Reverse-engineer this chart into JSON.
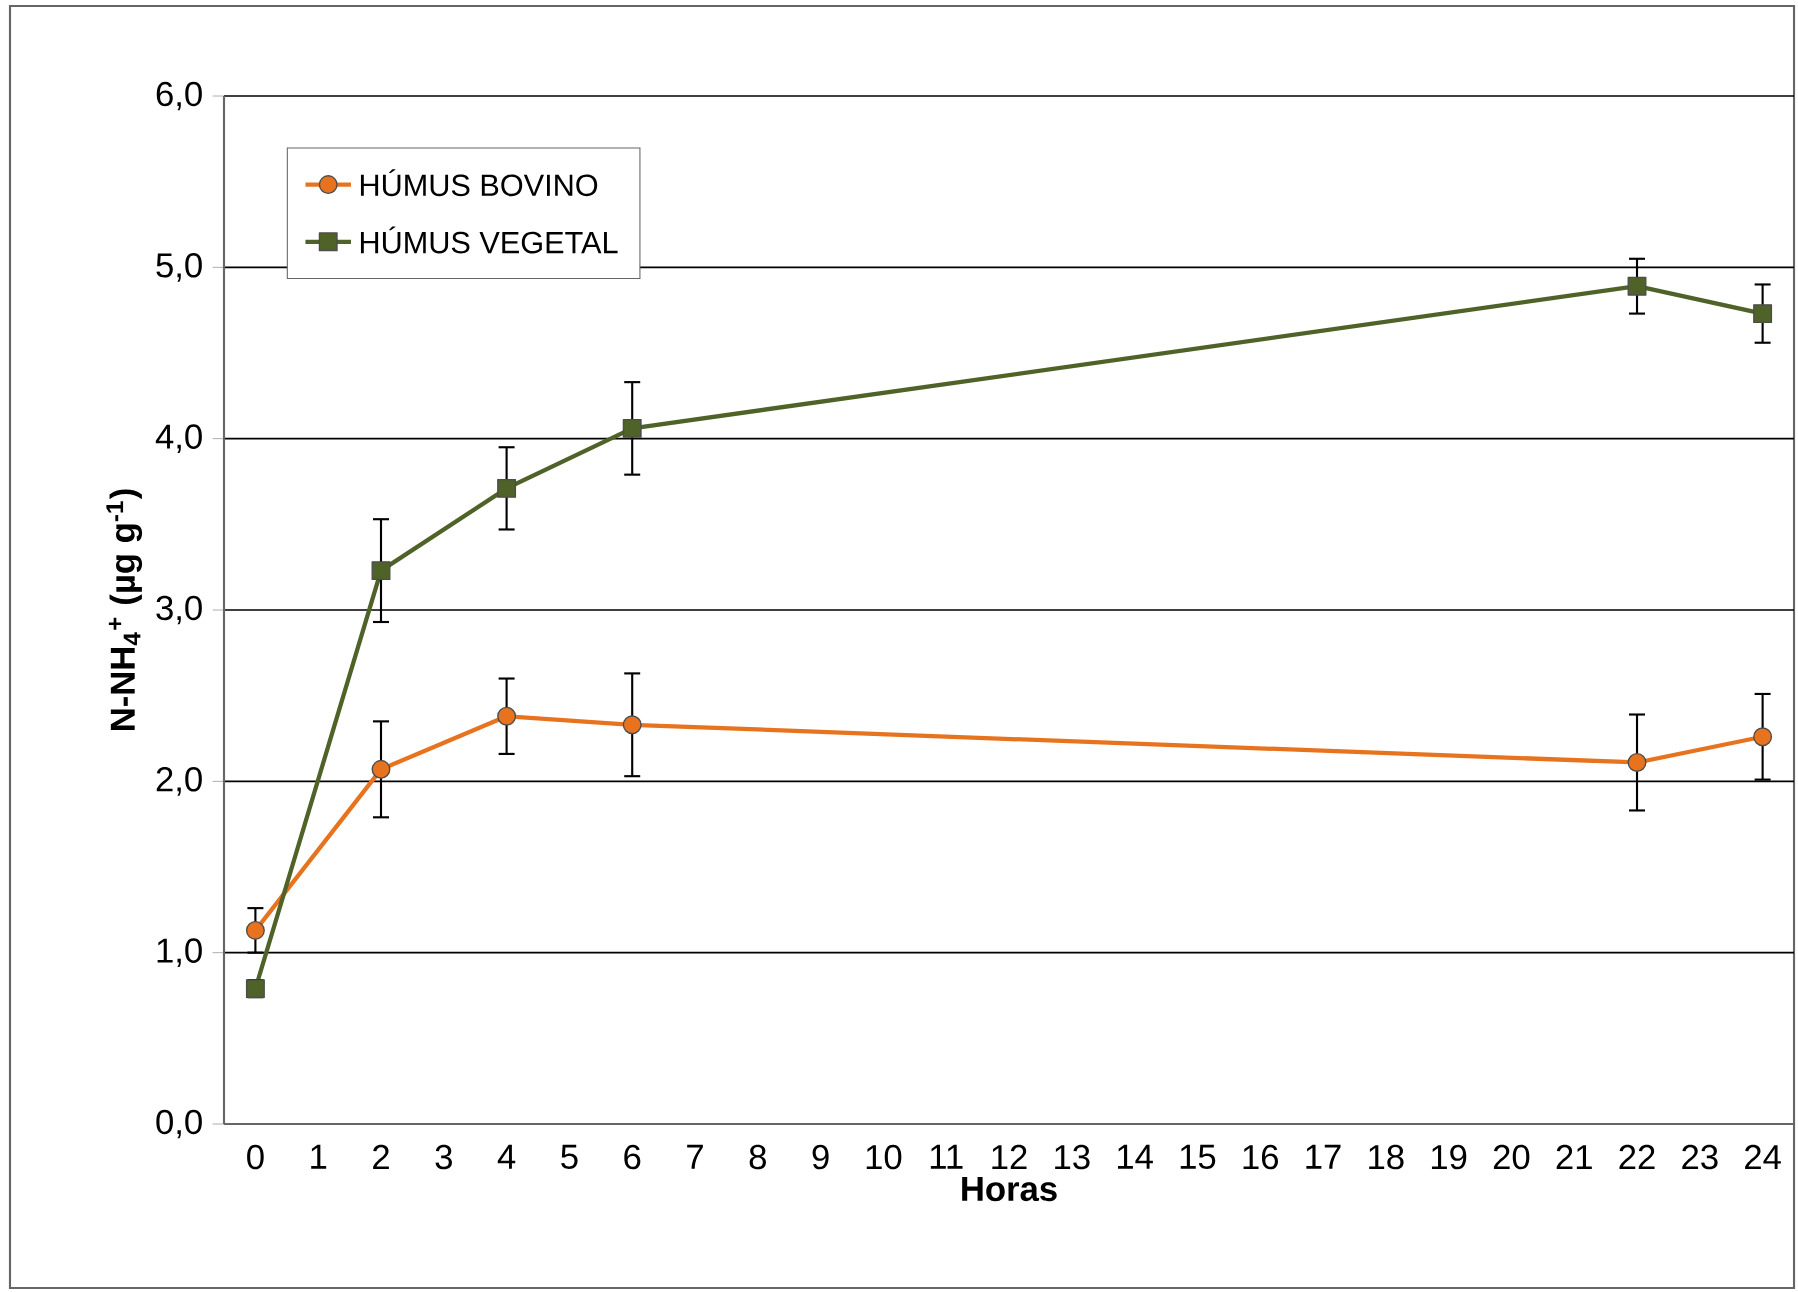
{
  "chart_data": {
    "type": "line",
    "xlabel": "Horas",
    "ylabel": "**N-NH$_{4}$$^{+}$ (µg g$^{-1}$)**",
    "x": [
      0,
      2,
      4,
      6,
      22,
      24
    ],
    "series": [
      {
        "name": "HÚMUS BOVINO",
        "color": "#e8731e",
        "marker": "circle",
        "values": [
          1.13,
          2.07,
          2.38,
          2.33,
          2.11,
          2.26
        ],
        "errors": [
          0.13,
          0.28,
          0.22,
          0.3,
          0.28,
          0.25
        ]
      },
      {
        "name": "HÚMUS VEGETAL",
        "color": "#4f6228",
        "marker": "square",
        "values": [
          0.79,
          3.23,
          3.71,
          4.06,
          4.89,
          4.73
        ],
        "errors": [
          0.05,
          0.3,
          0.24,
          0.27,
          0.16,
          0.17
        ]
      }
    ],
    "xlim": [
      -0.5,
      24.5
    ],
    "xticks": [
      0,
      1,
      2,
      3,
      4,
      5,
      6,
      7,
      8,
      9,
      10,
      11,
      12,
      13,
      14,
      15,
      16,
      17,
      18,
      19,
      20,
      21,
      22,
      23,
      24
    ],
    "ylim": [
      0,
      6
    ],
    "yticks": [
      {
        "value": 0,
        "label": "0,0"
      },
      {
        "value": 1,
        "label": "1,0"
      },
      {
        "value": 2,
        "label": "2,0"
      },
      {
        "value": 3,
        "label": "3,0"
      },
      {
        "value": 4,
        "label": "4,0"
      },
      {
        "value": 5,
        "label": "5,0"
      },
      {
        "value": 6,
        "label": "6,0"
      }
    ],
    "grid": "y",
    "legend": "top left",
    "line_style": "solid"
  }
}
